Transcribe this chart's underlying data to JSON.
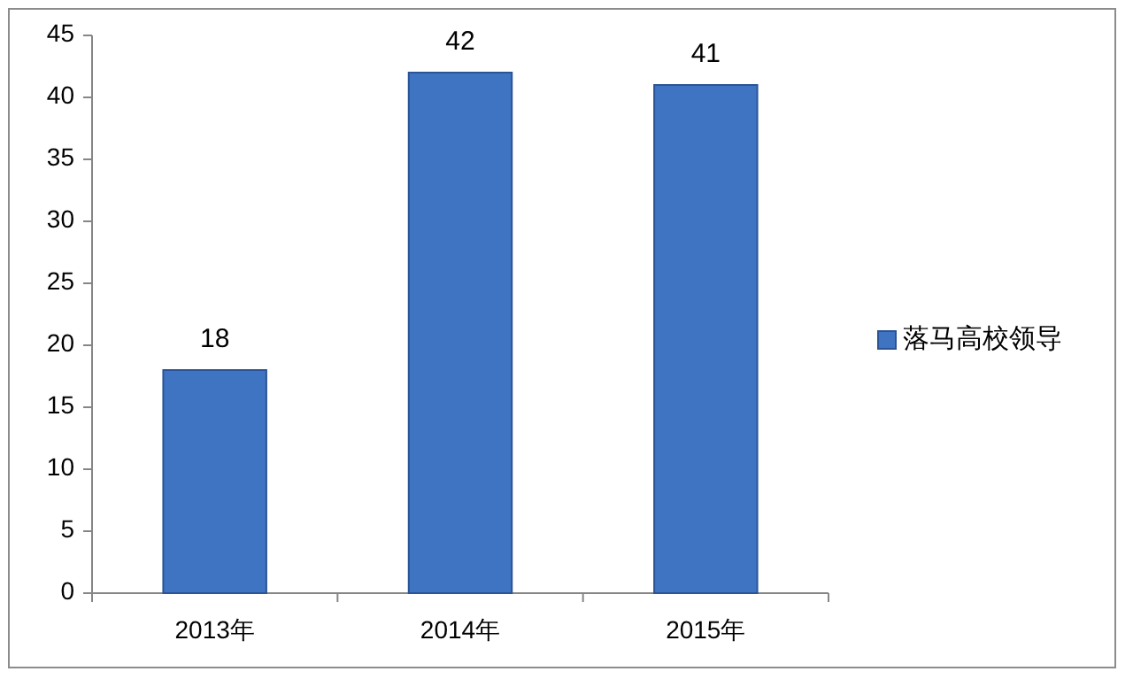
{
  "chart_data": {
    "type": "bar",
    "categories": [
      "2013年",
      "2014年",
      "2015年"
    ],
    "series": [
      {
        "name": "落马高校领导",
        "color": "#3f74c2",
        "values": [
          18,
          42,
          41
        ]
      }
    ],
    "ylim": [
      0,
      45
    ],
    "yticks": [
      0,
      5,
      10,
      15,
      20,
      25,
      30,
      35,
      40,
      45
    ],
    "data_labels": true,
    "legend": "right"
  }
}
